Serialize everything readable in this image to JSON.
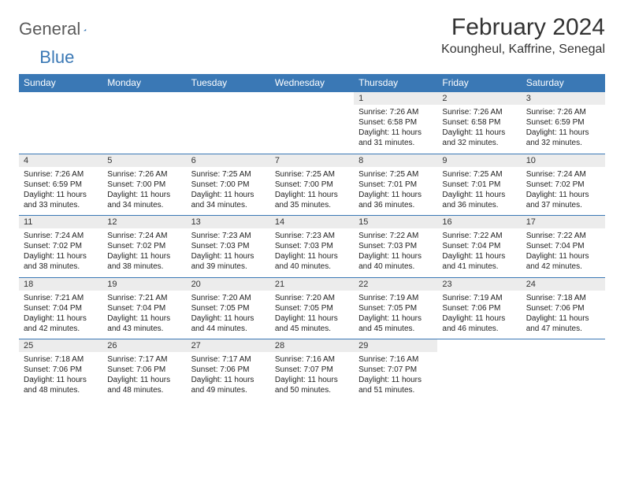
{
  "brand": {
    "part1": "General",
    "part2": "Blue"
  },
  "colors": {
    "accent": "#3a78b5",
    "header_bg": "#3a78b5",
    "daynum_bg": "#ececec",
    "text": "#222222"
  },
  "title": "February 2024",
  "location": "Koungheul, Kaffrine, Senegal",
  "day_headers": [
    "Sunday",
    "Monday",
    "Tuesday",
    "Wednesday",
    "Thursday",
    "Friday",
    "Saturday"
  ],
  "layout": {
    "first_weekday_index": 4,
    "rows": 5,
    "cols": 7
  },
  "days": [
    {
      "n": 1,
      "sunrise": "7:26 AM",
      "sunset": "6:58 PM",
      "daylight": "11 hours and 31 minutes."
    },
    {
      "n": 2,
      "sunrise": "7:26 AM",
      "sunset": "6:58 PM",
      "daylight": "11 hours and 32 minutes."
    },
    {
      "n": 3,
      "sunrise": "7:26 AM",
      "sunset": "6:59 PM",
      "daylight": "11 hours and 32 minutes."
    },
    {
      "n": 4,
      "sunrise": "7:26 AM",
      "sunset": "6:59 PM",
      "daylight": "11 hours and 33 minutes."
    },
    {
      "n": 5,
      "sunrise": "7:26 AM",
      "sunset": "7:00 PM",
      "daylight": "11 hours and 34 minutes."
    },
    {
      "n": 6,
      "sunrise": "7:25 AM",
      "sunset": "7:00 PM",
      "daylight": "11 hours and 34 minutes."
    },
    {
      "n": 7,
      "sunrise": "7:25 AM",
      "sunset": "7:00 PM",
      "daylight": "11 hours and 35 minutes."
    },
    {
      "n": 8,
      "sunrise": "7:25 AM",
      "sunset": "7:01 PM",
      "daylight": "11 hours and 36 minutes."
    },
    {
      "n": 9,
      "sunrise": "7:25 AM",
      "sunset": "7:01 PM",
      "daylight": "11 hours and 36 minutes."
    },
    {
      "n": 10,
      "sunrise": "7:24 AM",
      "sunset": "7:02 PM",
      "daylight": "11 hours and 37 minutes."
    },
    {
      "n": 11,
      "sunrise": "7:24 AM",
      "sunset": "7:02 PM",
      "daylight": "11 hours and 38 minutes."
    },
    {
      "n": 12,
      "sunrise": "7:24 AM",
      "sunset": "7:02 PM",
      "daylight": "11 hours and 38 minutes."
    },
    {
      "n": 13,
      "sunrise": "7:23 AM",
      "sunset": "7:03 PM",
      "daylight": "11 hours and 39 minutes."
    },
    {
      "n": 14,
      "sunrise": "7:23 AM",
      "sunset": "7:03 PM",
      "daylight": "11 hours and 40 minutes."
    },
    {
      "n": 15,
      "sunrise": "7:22 AM",
      "sunset": "7:03 PM",
      "daylight": "11 hours and 40 minutes."
    },
    {
      "n": 16,
      "sunrise": "7:22 AM",
      "sunset": "7:04 PM",
      "daylight": "11 hours and 41 minutes."
    },
    {
      "n": 17,
      "sunrise": "7:22 AM",
      "sunset": "7:04 PM",
      "daylight": "11 hours and 42 minutes."
    },
    {
      "n": 18,
      "sunrise": "7:21 AM",
      "sunset": "7:04 PM",
      "daylight": "11 hours and 42 minutes."
    },
    {
      "n": 19,
      "sunrise": "7:21 AM",
      "sunset": "7:04 PM",
      "daylight": "11 hours and 43 minutes."
    },
    {
      "n": 20,
      "sunrise": "7:20 AM",
      "sunset": "7:05 PM",
      "daylight": "11 hours and 44 minutes."
    },
    {
      "n": 21,
      "sunrise": "7:20 AM",
      "sunset": "7:05 PM",
      "daylight": "11 hours and 45 minutes."
    },
    {
      "n": 22,
      "sunrise": "7:19 AM",
      "sunset": "7:05 PM",
      "daylight": "11 hours and 45 minutes."
    },
    {
      "n": 23,
      "sunrise": "7:19 AM",
      "sunset": "7:06 PM",
      "daylight": "11 hours and 46 minutes."
    },
    {
      "n": 24,
      "sunrise": "7:18 AM",
      "sunset": "7:06 PM",
      "daylight": "11 hours and 47 minutes."
    },
    {
      "n": 25,
      "sunrise": "7:18 AM",
      "sunset": "7:06 PM",
      "daylight": "11 hours and 48 minutes."
    },
    {
      "n": 26,
      "sunrise": "7:17 AM",
      "sunset": "7:06 PM",
      "daylight": "11 hours and 48 minutes."
    },
    {
      "n": 27,
      "sunrise": "7:17 AM",
      "sunset": "7:06 PM",
      "daylight": "11 hours and 49 minutes."
    },
    {
      "n": 28,
      "sunrise": "7:16 AM",
      "sunset": "7:07 PM",
      "daylight": "11 hours and 50 minutes."
    },
    {
      "n": 29,
      "sunrise": "7:16 AM",
      "sunset": "7:07 PM",
      "daylight": "11 hours and 51 minutes."
    }
  ],
  "labels": {
    "sunrise": "Sunrise:",
    "sunset": "Sunset:",
    "daylight": "Daylight:"
  }
}
